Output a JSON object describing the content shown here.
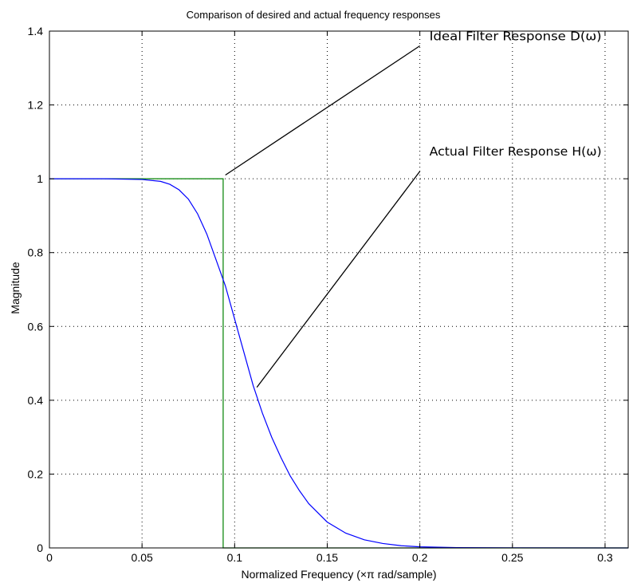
{
  "chart_data": {
    "type": "line",
    "title": "Comparison of desired and actual frequency responses",
    "xlabel": "Normalized Frequency  (×π rad/sample)",
    "ylabel": "Magnitude",
    "xlim": [
      0,
      0.3125
    ],
    "ylim": [
      0,
      1.4
    ],
    "x_ticks": [
      0,
      0.05,
      0.1,
      0.15,
      0.2,
      0.25,
      0.3
    ],
    "x_tick_labels": [
      "0",
      "0.05",
      "0.1",
      "0.15",
      "0.2",
      "0.25",
      "0.3"
    ],
    "y_ticks": [
      0,
      0.2,
      0.4,
      0.6,
      0.8,
      1,
      1.2,
      1.4
    ],
    "y_tick_labels": [
      "0",
      "0.2",
      "0.4",
      "0.6",
      "0.8",
      "1",
      "1.2",
      "1.4"
    ],
    "grid": true,
    "series": [
      {
        "color": "#008000",
        "x": [
          0,
          0.0938,
          0.0938,
          0.3125
        ],
        "y": [
          1,
          1,
          0,
          0
        ]
      },
      {
        "color": "#0000ff",
        "x": [
          0,
          0.03,
          0.05,
          0.06,
          0.065,
          0.07,
          0.075,
          0.08,
          0.085,
          0.09,
          0.095,
          0.1,
          0.105,
          0.11,
          0.115,
          0.12,
          0.125,
          0.13,
          0.135,
          0.14,
          0.15,
          0.16,
          0.17,
          0.18,
          0.19,
          0.2,
          0.22,
          0.25,
          0.3,
          0.3125
        ],
        "y": [
          1,
          1,
          0.998,
          0.993,
          0.985,
          0.97,
          0.945,
          0.905,
          0.85,
          0.78,
          0.71,
          0.62,
          0.53,
          0.44,
          0.365,
          0.3,
          0.245,
          0.195,
          0.155,
          0.12,
          0.07,
          0.04,
          0.022,
          0.012,
          0.006,
          0.003,
          0.0008,
          0.0002,
          0.0,
          0.0
        ]
      }
    ],
    "annotations": [
      {
        "text": "Ideal Filter Response D(ω)",
        "text_at": [
          0.103,
          1.38
        ],
        "line_from": [
          0.2,
          1.36
        ],
        "line_to": [
          0.095,
          1.01
        ]
      },
      {
        "text": "Actual Filter Response H(ω)",
        "text_at": [
          0.103,
          1.035
        ],
        "line_from": [
          0.2,
          1.02
        ],
        "line_to": [
          0.112,
          0.435
        ]
      }
    ]
  }
}
